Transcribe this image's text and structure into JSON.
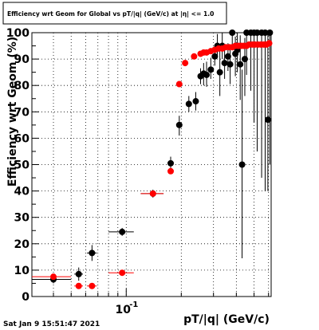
{
  "chart_data": {
    "type": "scatter",
    "title": "Efficiency wrt Geom for Global vs pT/|q| (GeV/c) at |η| <= 1.0",
    "xlabel": "pT/|q| (GeV/c)",
    "ylabel": "Efficiency wrt Geom (%)",
    "x_scale": "log",
    "xlim": [
      0.0305,
      0.62
    ],
    "ylim": [
      0,
      100
    ],
    "y_ticks": [
      0,
      10,
      20,
      30,
      40,
      50,
      60,
      70,
      80,
      90,
      100
    ],
    "y_tick_labels": [
      "0",
      "10",
      "20",
      "30",
      "40",
      "50",
      "60",
      "70",
      "80",
      "90",
      "100"
    ],
    "x_major_tick_label": "10",
    "x_major_tick_exponent": "-1",
    "grid": true,
    "timestamp": "Sat Jan  9 15:51:47 2021",
    "series": [
      {
        "color": "#000000",
        "points": [
          {
            "x": 0.04,
            "xerr": [
              0.03,
              0.05
            ],
            "y": 6.5,
            "yerr": [
              5.0,
              8.0
            ]
          },
          {
            "x": 0.055,
            "xerr": [
              0.052,
              0.058
            ],
            "y": 8.5,
            "yerr": [
              6.0,
              11.0
            ]
          },
          {
            "x": 0.065,
            "xerr": [
              0.061,
              0.069
            ],
            "y": 16.5,
            "yerr": [
              13.5,
              19.5
            ]
          },
          {
            "x": 0.095,
            "xerr": [
              0.08,
              0.11
            ],
            "y": 24.5,
            "yerr": [
              23.0,
              26.0
            ]
          },
          {
            "x": 0.14,
            "xerr": [
              0.12,
              0.16
            ],
            "y": 39.0,
            "yerr": [
              37.5,
              40.5
            ]
          },
          {
            "x": 0.175,
            "xerr": [
              0.172,
              0.178
            ],
            "y": 50.5,
            "yerr": [
              48.5,
              53.0
            ]
          },
          {
            "x": 0.195,
            "xerr": [
              0.19,
              0.2
            ],
            "y": 65.0,
            "yerr": [
              61.0,
              68.5
            ]
          },
          {
            "x": 0.22,
            "xerr": [
              0.212,
              0.228
            ],
            "y": 73.0,
            "yerr": [
              70.0,
              76.0
            ]
          },
          {
            "x": 0.24,
            "xerr": [
              0.232,
              0.248
            ],
            "y": 74.0,
            "yerr": [
              70.5,
              77.5
            ]
          },
          {
            "x": 0.255,
            "xerr": [
              0.25,
              0.26
            ],
            "y": 83.5,
            "yerr": [
              80.5,
              86.5
            ]
          },
          {
            "x": 0.265,
            "xerr": [
              0.26,
              0.27
            ],
            "y": 84.5,
            "yerr": [
              80.0,
              88.5
            ]
          },
          {
            "x": 0.275,
            "xerr": [
              0.27,
              0.28
            ],
            "y": 84.0,
            "yerr": [
              79.5,
              89.0
            ]
          },
          {
            "x": 0.29,
            "xerr": [
              0.285,
              0.295
            ],
            "y": 86.0,
            "yerr": [
              82.5,
              90.5
            ]
          },
          {
            "x": 0.305,
            "xerr": [
              0.3,
              0.31
            ],
            "y": 91.0,
            "yerr": [
              87.5,
              94.5
            ]
          },
          {
            "x": 0.315,
            "xerr": [
              0.31,
              0.32
            ],
            "y": 95.0,
            "yerr": [
              90.5,
              99.5
            ]
          },
          {
            "x": 0.325,
            "xerr": [
              0.32,
              0.33
            ],
            "y": 85.0,
            "yerr": [
              76.0,
              93.5
            ]
          },
          {
            "x": 0.335,
            "xerr": [
              0.33,
              0.34
            ],
            "y": 95.0,
            "yerr": [
              90.0,
              100.0
            ]
          },
          {
            "x": 0.345,
            "xerr": [
              0.34,
              0.35
            ],
            "y": 88.5,
            "yerr": [
              82.5,
              94.5
            ]
          },
          {
            "x": 0.36,
            "xerr": [
              0.355,
              0.365
            ],
            "y": 91.0,
            "yerr": [
              85.5,
              96.0
            ]
          },
          {
            "x": 0.37,
            "xerr": [
              0.365,
              0.375
            ],
            "y": 88.0,
            "yerr": [
              80.5,
              94.5
            ]
          },
          {
            "x": 0.38,
            "xerr": [
              0.375,
              0.385
            ],
            "y": 100.0,
            "yerr": [
              93.5,
              100.0
            ]
          },
          {
            "x": 0.395,
            "xerr": [
              0.39,
              0.4
            ],
            "y": 92.0,
            "yerr": [
              83.5,
              98.5
            ]
          },
          {
            "x": 0.405,
            "xerr": [
              0.4,
              0.41
            ],
            "y": 93.5,
            "yerr": [
              85.0,
              100.0
            ]
          },
          {
            "x": 0.42,
            "xerr": [
              0.415,
              0.425
            ],
            "y": 88.0,
            "yerr": [
              74.5,
              99.0
            ]
          },
          {
            "x": 0.43,
            "xerr": [
              0.425,
              0.435
            ],
            "y": 50.0,
            "yerr": [
              14.5,
              86.0
            ]
          },
          {
            "x": 0.445,
            "xerr": [
              0.44,
              0.45
            ],
            "y": 90.0,
            "yerr": [
              76.0,
              98.0
            ]
          },
          {
            "x": 0.455,
            "xerr": [
              0.45,
              0.46
            ],
            "y": 100.0,
            "yerr": [
              84.0,
              100.0
            ]
          },
          {
            "x": 0.48,
            "xerr": [
              0.475,
              0.485
            ],
            "y": 100.0,
            "yerr": [
              78.0,
              100.0
            ]
          },
          {
            "x": 0.5,
            "xerr": [
              0.495,
              0.505
            ],
            "y": 100.0,
            "yerr": [
              66.0,
              100.0
            ]
          },
          {
            "x": 0.52,
            "xerr": [
              0.515,
              0.525
            ],
            "y": 100.0,
            "yerr": [
              55.0,
              100.0
            ]
          },
          {
            "x": 0.55,
            "xerr": [
              0.545,
              0.555
            ],
            "y": 100.0,
            "yerr": [
              45.0,
              100.0
            ]
          },
          {
            "x": 0.575,
            "xerr": [
              0.57,
              0.58
            ],
            "y": 100.0,
            "yerr": [
              40.0,
              100.0
            ]
          },
          {
            "x": 0.595,
            "xerr": [
              0.59,
              0.6
            ],
            "y": 67.0,
            "yerr": [
              40.0,
              100.0
            ]
          },
          {
            "x": 0.61,
            "xerr": [
              0.605,
              0.615
            ],
            "y": 100.0,
            "yerr": [
              50.0,
              100.0
            ]
          }
        ]
      },
      {
        "color": "#ff0000",
        "points": [
          {
            "x": 0.04,
            "xerr": [
              0.03,
              0.05
            ],
            "y": 7.5,
            "yerr": [
              7.5,
              7.5
            ]
          },
          {
            "x": 0.055,
            "xerr": [
              0.052,
              0.058
            ],
            "y": 4.0,
            "yerr": [
              4.0,
              4.0
            ]
          },
          {
            "x": 0.065,
            "xerr": [
              0.061,
              0.069
            ],
            "y": 4.0,
            "yerr": [
              4.0,
              4.0
            ]
          },
          {
            "x": 0.095,
            "xerr": [
              0.08,
              0.11
            ],
            "y": 9.0,
            "yerr": [
              9.0,
              9.0
            ]
          },
          {
            "x": 0.14,
            "xerr": [
              0.12,
              0.16
            ],
            "y": 39.0,
            "yerr": [
              39.0,
              39.0
            ]
          },
          {
            "x": 0.175,
            "xerr": [
              0.172,
              0.178
            ],
            "y": 47.5,
            "yerr": [
              47.5,
              47.5
            ]
          },
          {
            "x": 0.195,
            "xerr": [
              0.19,
              0.2
            ],
            "y": 80.5,
            "yerr": [
              80.5,
              80.5
            ]
          },
          {
            "x": 0.21,
            "xerr": [
              0.205,
              0.215
            ],
            "y": 88.5,
            "yerr": [
              88.5,
              88.5
            ]
          },
          {
            "x": 0.235,
            "xerr": [
              0.23,
              0.24
            ],
            "y": 91.0,
            "yerr": [
              91.0,
              91.0
            ]
          },
          {
            "x": 0.255,
            "xerr": [
              0.25,
              0.26
            ],
            "y": 92.0,
            "yerr": [
              92.0,
              92.0
            ]
          },
          {
            "x": 0.265,
            "xerr": [
              0.26,
              0.27
            ],
            "y": 92.5,
            "yerr": [
              92.5,
              92.5
            ]
          },
          {
            "x": 0.275,
            "xerr": [
              0.27,
              0.28
            ],
            "y": 92.5,
            "yerr": [
              92.5,
              92.5
            ]
          },
          {
            "x": 0.29,
            "xerr": [
              0.285,
              0.295
            ],
            "y": 93.0,
            "yerr": [
              93.0,
              93.0
            ]
          },
          {
            "x": 0.305,
            "xerr": [
              0.3,
              0.31
            ],
            "y": 93.5,
            "yerr": [
              93.5,
              93.5
            ]
          },
          {
            "x": 0.32,
            "xerr": [
              0.315,
              0.325
            ],
            "y": 94.0,
            "yerr": [
              94.0,
              94.0
            ]
          },
          {
            "x": 0.335,
            "xerr": [
              0.33,
              0.34
            ],
            "y": 94.0,
            "yerr": [
              94.0,
              94.0
            ]
          },
          {
            "x": 0.35,
            "xerr": [
              0.345,
              0.355
            ],
            "y": 94.5,
            "yerr": [
              94.5,
              94.5
            ]
          },
          {
            "x": 0.365,
            "xerr": [
              0.36,
              0.37
            ],
            "y": 94.5,
            "yerr": [
              94.5,
              94.5
            ]
          },
          {
            "x": 0.38,
            "xerr": [
              0.375,
              0.385
            ],
            "y": 94.5,
            "yerr": [
              94.5,
              94.5
            ]
          },
          {
            "x": 0.395,
            "xerr": [
              0.39,
              0.4
            ],
            "y": 95.0,
            "yerr": [
              95.0,
              95.0
            ]
          },
          {
            "x": 0.41,
            "xerr": [
              0.405,
              0.415
            ],
            "y": 95.0,
            "yerr": [
              95.0,
              95.0
            ]
          },
          {
            "x": 0.425,
            "xerr": [
              0.42,
              0.43
            ],
            "y": 95.0,
            "yerr": [
              95.0,
              95.0
            ]
          },
          {
            "x": 0.44,
            "xerr": [
              0.435,
              0.445
            ],
            "y": 95.0,
            "yerr": [
              95.0,
              95.0
            ]
          },
          {
            "x": 0.455,
            "xerr": [
              0.45,
              0.46
            ],
            "y": 95.0,
            "yerr": [
              95.0,
              95.0
            ]
          },
          {
            "x": 0.47,
            "xerr": [
              0.465,
              0.475
            ],
            "y": 95.5,
            "yerr": [
              95.5,
              95.5
            ]
          },
          {
            "x": 0.49,
            "xerr": [
              0.485,
              0.495
            ],
            "y": 95.5,
            "yerr": [
              95.5,
              95.5
            ]
          },
          {
            "x": 0.505,
            "xerr": [
              0.5,
              0.51
            ],
            "y": 95.5,
            "yerr": [
              95.5,
              95.5
            ]
          },
          {
            "x": 0.525,
            "xerr": [
              0.52,
              0.53
            ],
            "y": 95.5,
            "yerr": [
              95.5,
              95.5
            ]
          },
          {
            "x": 0.545,
            "xerr": [
              0.54,
              0.55
            ],
            "y": 95.5,
            "yerr": [
              95.5,
              95.5
            ]
          },
          {
            "x": 0.565,
            "xerr": [
              0.56,
              0.57
            ],
            "y": 95.5,
            "yerr": [
              95.5,
              95.5
            ]
          },
          {
            "x": 0.585,
            "xerr": [
              0.58,
              0.59
            ],
            "y": 95.5,
            "yerr": [
              95.5,
              95.5
            ]
          },
          {
            "x": 0.605,
            "xerr": [
              0.6,
              0.61
            ],
            "y": 96.0,
            "yerr": [
              96.0,
              96.0
            ]
          }
        ]
      }
    ]
  }
}
